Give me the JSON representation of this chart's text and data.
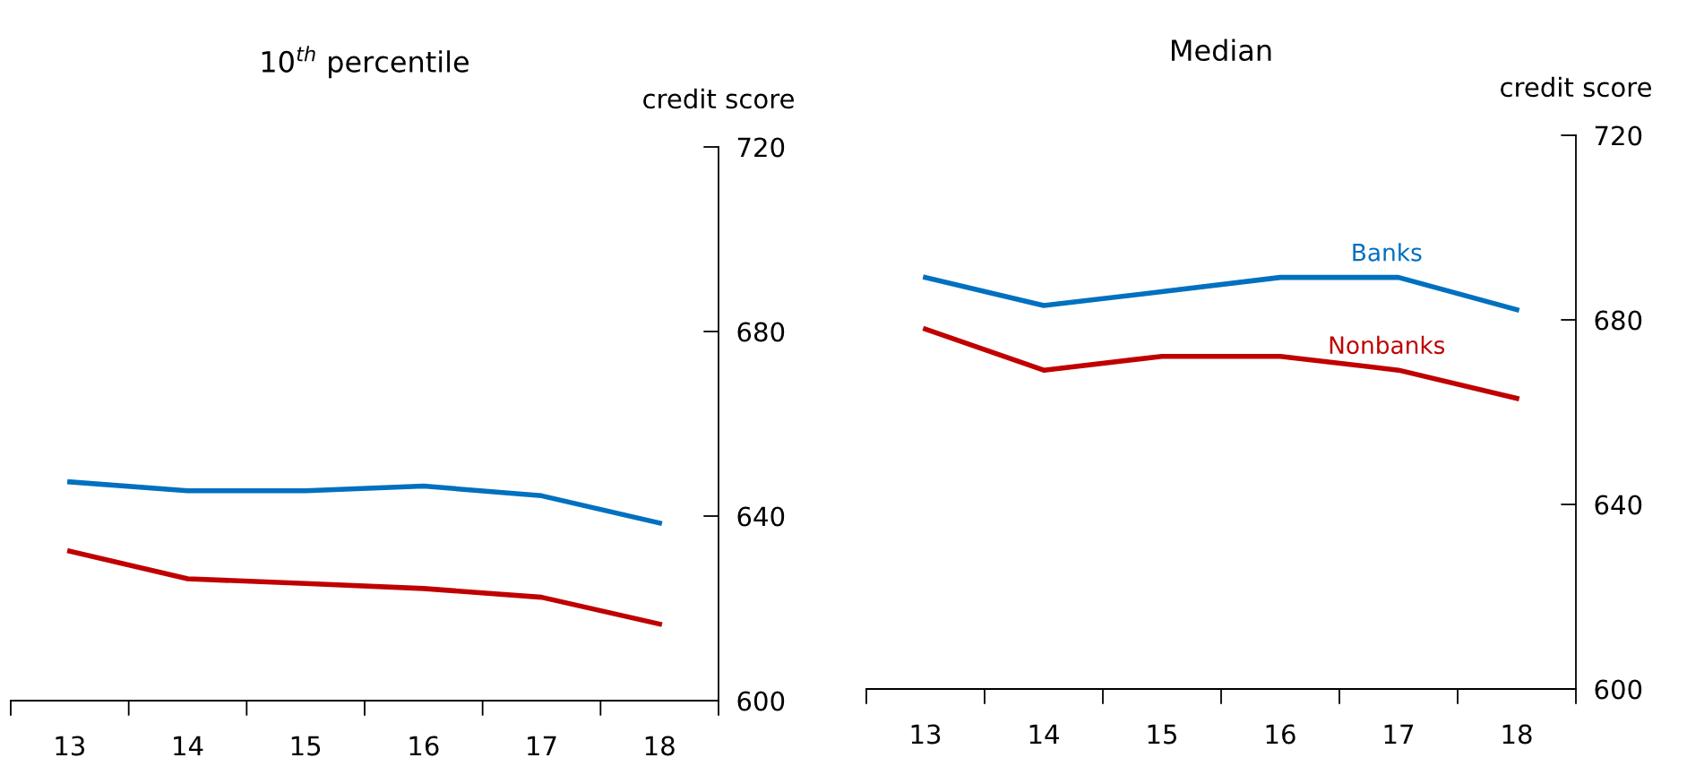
{
  "chart_data": [
    {
      "type": "line",
      "title": "10$^{th}$ percentile",
      "ylabel": "credit score",
      "categories": [
        "13",
        "14",
        "15",
        "16",
        "17",
        "18"
      ],
      "ylim": [
        600,
        720
      ],
      "yticks": [
        600,
        640,
        680,
        720
      ],
      "grid": false,
      "legend": false,
      "marker": "none",
      "line_style": "solid",
      "series": [
        {
          "color": "#0070c0",
          "values": [
            647.4,
            645.5,
            645.5,
            646.5,
            644.4,
            638.5
          ]
        },
        {
          "color": "#c00000",
          "values": [
            632.4,
            626.4,
            625.4,
            624.3,
            622.4,
            616.6
          ]
        }
      ]
    },
    {
      "type": "line",
      "title": "Median",
      "ylabel": "credit score",
      "categories": [
        "13",
        "14",
        "15",
        "16",
        "17",
        "18"
      ],
      "ylim": [
        600,
        720
      ],
      "yticks": [
        600,
        640,
        680,
        720
      ],
      "grid": false,
      "legend": false,
      "marker": "none",
      "line_style": "solid",
      "series": [
        {
          "name": "Banks",
          "color": "#0070c0",
          "values": [
            689.2,
            683.1,
            686.1,
            689.2,
            689.2,
            682.2
          ]
        },
        {
          "name": "Nonbanks",
          "color": "#c00000",
          "values": [
            678.0,
            669.1,
            672.1,
            672.1,
            669.1,
            663.0
          ]
        }
      ]
    }
  ]
}
